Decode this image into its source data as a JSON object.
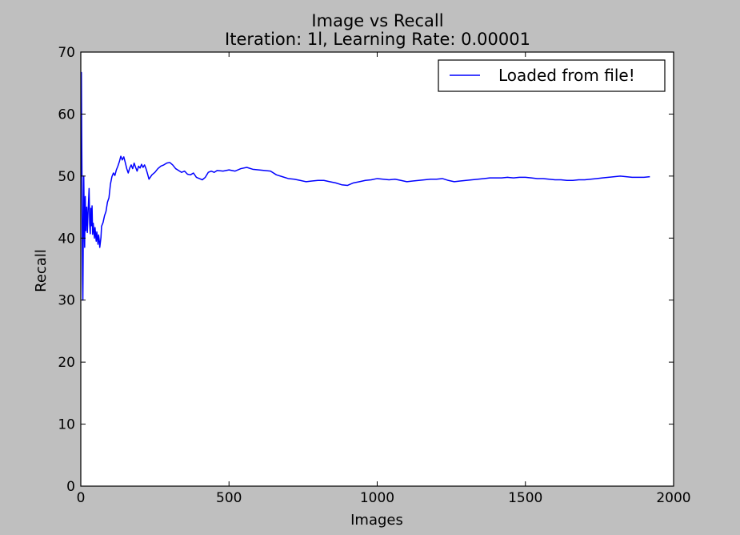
{
  "chart_data": {
    "type": "line",
    "title": "Image vs Recall",
    "subtitle": "Iteration: 1l, Learning Rate: 0.00001",
    "xlabel": "Images",
    "ylabel": "Recall",
    "xlim": [
      0,
      2000
    ],
    "ylim": [
      0,
      70
    ],
    "xticks": [
      0,
      500,
      1000,
      1500,
      2000
    ],
    "yticks": [
      0,
      10,
      20,
      30,
      40,
      50,
      60,
      70
    ],
    "xtick_labels": [
      "0",
      "500",
      "1000",
      "1500",
      "2000"
    ],
    "ytick_labels": [
      "0",
      "10",
      "20",
      "30",
      "40",
      "50",
      "60",
      "70"
    ],
    "grid": false,
    "legend": {
      "placement": "top-right"
    },
    "series": [
      {
        "name": "Loaded from file!",
        "color": "#0000ff",
        "x": [
          1,
          2,
          3,
          4,
          5,
          6,
          7,
          8,
          9,
          10,
          11,
          12,
          13,
          14,
          15,
          16,
          17,
          18,
          19,
          20,
          22,
          24,
          26,
          28,
          30,
          32,
          34,
          36,
          38,
          40,
          42,
          44,
          46,
          48,
          50,
          52,
          54,
          56,
          58,
          60,
          62,
          64,
          66,
          68,
          70,
          75,
          80,
          85,
          90,
          95,
          100,
          105,
          110,
          115,
          120,
          125,
          130,
          135,
          140,
          145,
          150,
          155,
          160,
          165,
          170,
          175,
          180,
          185,
          190,
          195,
          200,
          205,
          210,
          215,
          220,
          225,
          230,
          240,
          250,
          260,
          270,
          280,
          290,
          300,
          310,
          320,
          330,
          340,
          350,
          360,
          370,
          380,
          390,
          400,
          410,
          420,
          430,
          440,
          450,
          460,
          480,
          500,
          520,
          540,
          560,
          580,
          600,
          620,
          640,
          660,
          680,
          700,
          720,
          740,
          760,
          780,
          800,
          820,
          840,
          860,
          880,
          900,
          920,
          940,
          960,
          980,
          1000,
          1020,
          1040,
          1060,
          1080,
          1100,
          1120,
          1140,
          1160,
          1180,
          1200,
          1220,
          1240,
          1260,
          1280,
          1300,
          1320,
          1340,
          1360,
          1380,
          1400,
          1420,
          1440,
          1460,
          1480,
          1500,
          1520,
          1540,
          1560,
          1580,
          1600,
          1620,
          1640,
          1660,
          1680,
          1700,
          1720,
          1740,
          1760,
          1780,
          1800,
          1820,
          1840,
          1860,
          1880,
          1900,
          1920
        ],
        "values": [
          50,
          66.7,
          57,
          50,
          40,
          33.3,
          30,
          37.5,
          44.4,
          50,
          45.5,
          41.7,
          38.5,
          42.9,
          46.7,
          43.8,
          41.2,
          44.4,
          42.1,
          45,
          40.9,
          43.5,
          45.8,
          48,
          42.3,
          40.7,
          44.8,
          42,
          45.2,
          40.6,
          42.4,
          41.2,
          40,
          41.7,
          40.5,
          39.5,
          41,
          40,
          39,
          40.5,
          39.8,
          38.5,
          39.3,
          40.1,
          41.9,
          42.5,
          43.6,
          44.3,
          45.8,
          46.5,
          48.7,
          49.9,
          50.5,
          50.1,
          51,
          51.6,
          52.3,
          53.2,
          52.6,
          53.1,
          52.2,
          51.2,
          50.5,
          51.3,
          51.8,
          51.2,
          52.1,
          51.4,
          50.8,
          51.6,
          51.3,
          51.9,
          51.4,
          51.8,
          51.2,
          50.4,
          49.5,
          50.2,
          50.6,
          51.2,
          51.6,
          51.8,
          52.1,
          52.2,
          51.8,
          51.2,
          50.9,
          50.6,
          50.8,
          50.3,
          50.2,
          50.5,
          49.8,
          49.6,
          49.4,
          49.8,
          50.6,
          50.8,
          50.6,
          50.9,
          50.8,
          51,
          50.8,
          51.2,
          51.4,
          51.1,
          51,
          50.9,
          50.8,
          50.2,
          49.9,
          49.6,
          49.5,
          49.3,
          49.1,
          49.2,
          49.3,
          49.3,
          49.1,
          48.9,
          48.6,
          48.5,
          48.9,
          49.1,
          49.3,
          49.4,
          49.6,
          49.5,
          49.4,
          49.5,
          49.3,
          49.1,
          49.2,
          49.3,
          49.4,
          49.5,
          49.5,
          49.6,
          49.3,
          49.1,
          49.2,
          49.3,
          49.4,
          49.5,
          49.6,
          49.7,
          49.7,
          49.7,
          49.8,
          49.7,
          49.8,
          49.8,
          49.7,
          49.6,
          49.6,
          49.5,
          49.4,
          49.4,
          49.3,
          49.3,
          49.4,
          49.4,
          49.5,
          49.6,
          49.7,
          49.8,
          49.9,
          50,
          49.9,
          49.8,
          49.8,
          49.8,
          49.9
        ]
      }
    ]
  }
}
